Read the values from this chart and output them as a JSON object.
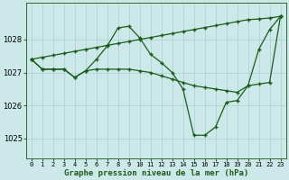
{
  "title": "Graphe pression niveau de la mer (hPa)",
  "background_color": "#cce8e8",
  "grid_color": "#aad0d0",
  "line_color": "#1a5c1a",
  "ylim": [
    1024.4,
    1029.1
  ],
  "yticks": [
    1025,
    1026,
    1027,
    1028
  ],
  "hours": [
    0,
    1,
    2,
    3,
    4,
    5,
    6,
    7,
    8,
    9,
    10,
    11,
    12,
    13,
    14,
    15,
    16,
    17,
    18,
    19,
    20,
    21,
    22,
    23
  ],
  "curve_main": [
    1027.4,
    1027.1,
    1027.1,
    1027.1,
    1026.85,
    1027.05,
    1027.4,
    1027.8,
    1028.35,
    1028.4,
    1028.05,
    1027.55,
    1027.3,
    1027.0,
    1026.5,
    1025.1,
    1025.1,
    1025.35,
    1026.1,
    1026.15,
    1026.6,
    1027.7,
    1028.3,
    1028.7
  ],
  "curve_diag": [
    1027.4,
    1027.46,
    1027.52,
    1027.58,
    1027.64,
    1027.7,
    1027.76,
    1027.82,
    1027.88,
    1027.94,
    1028.0,
    1028.06,
    1028.12,
    1028.18,
    1028.24,
    1028.3,
    1028.36,
    1028.42,
    1028.48,
    1028.54,
    1028.6,
    1028.62,
    1028.65,
    1028.7
  ],
  "curve_decline": [
    1027.4,
    1027.1,
    1027.1,
    1027.1,
    1026.85,
    1027.05,
    1027.1,
    1027.1,
    1027.1,
    1027.1,
    1027.05,
    1027.0,
    1026.9,
    1026.8,
    1026.7,
    1026.6,
    1026.55,
    1026.5,
    1026.45,
    1026.4,
    1026.6,
    1026.65,
    1026.7,
    1028.7
  ]
}
